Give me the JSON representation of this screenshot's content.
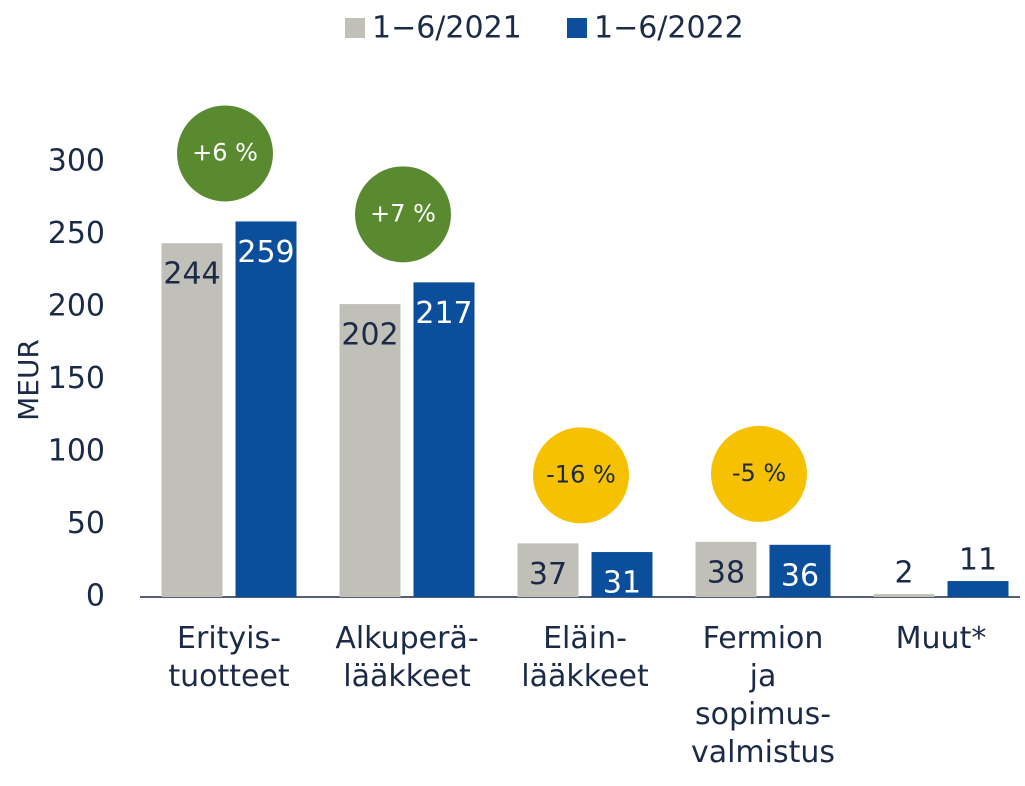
{
  "chart_data": {
    "type": "bar",
    "y_label": "MEUR",
    "categories": [
      "Erityis-\ntuotteet",
      "Alkuperä-\nlääkkeet",
      "Eläin-\nlääkkeet",
      "Fermion\nja\nsopimus-\nvalmistus",
      "Muut*"
    ],
    "series": [
      {
        "name": "1−6/2021",
        "color": "#c0c0b9",
        "values": [
          244,
          202,
          37,
          38,
          2
        ]
      },
      {
        "name": "1−6/2022",
        "color": "#0b4f9c",
        "values": [
          259,
          217,
          31,
          36,
          11
        ]
      }
    ],
    "annotations": [
      {
        "text": "+6 %",
        "color": "#5a8a30"
      },
      {
        "text": "+7 %",
        "color": "#5a8a30"
      },
      {
        "text": "-16 %",
        "color": "#f6c100"
      },
      {
        "text": "-5 %",
        "color": "#f6c100"
      },
      null
    ],
    "ylim": [
      0,
      300
    ],
    "yticks": [
      0,
      50,
      100,
      150,
      200,
      250,
      300
    ]
  }
}
